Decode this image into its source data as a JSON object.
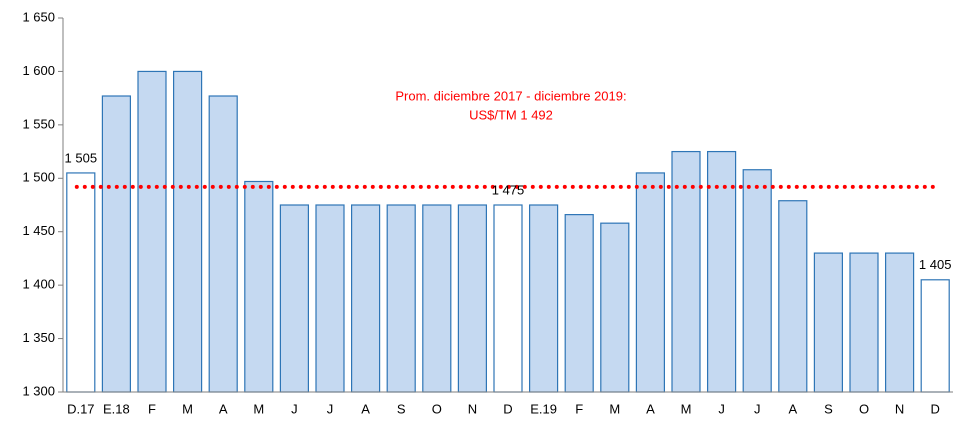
{
  "chart_data": {
    "type": "bar",
    "categories": [
      "D.17",
      "E.18",
      "F",
      "M",
      "A",
      "M",
      "J",
      "J",
      "A",
      "S",
      "O",
      "N",
      "D",
      "E.19",
      "F",
      "M",
      "A",
      "M",
      "J",
      "J",
      "A",
      "S",
      "O",
      "N",
      "D"
    ],
    "values": [
      1505,
      1577,
      1600,
      1600,
      1577,
      1497,
      1475,
      1475,
      1475,
      1475,
      1475,
      1475,
      1475,
      1475,
      1466,
      1458,
      1505,
      1525,
      1525,
      1508,
      1479,
      1430,
      1430,
      1430,
      1405
    ],
    "value_labels": [
      "1 505",
      null,
      null,
      null,
      null,
      null,
      null,
      null,
      null,
      null,
      null,
      null,
      "1 475",
      null,
      null,
      null,
      null,
      null,
      null,
      null,
      null,
      null,
      null,
      null,
      "1 405"
    ],
    "colors": [
      "#ffffff",
      "#c5d9f1",
      "#c5d9f1",
      "#c5d9f1",
      "#c5d9f1",
      "#c5d9f1",
      "#c5d9f1",
      "#c5d9f1",
      "#c5d9f1",
      "#c5d9f1",
      "#c5d9f1",
      "#c5d9f1",
      "#ffffff",
      "#c5d9f1",
      "#c5d9f1",
      "#c5d9f1",
      "#c5d9f1",
      "#c5d9f1",
      "#c5d9f1",
      "#c5d9f1",
      "#c5d9f1",
      "#c5d9f1",
      "#c5d9f1",
      "#c5d9f1",
      "#ffffff"
    ],
    "border_color": "#2e75b6",
    "ylim": [
      1300,
      1650
    ],
    "yticks": [
      {
        "value": 1300,
        "label": "1 300"
      },
      {
        "value": 1350,
        "label": "1 350"
      },
      {
        "value": 1400,
        "label": "1 400"
      },
      {
        "value": 1450,
        "label": "1 450"
      },
      {
        "value": 1500,
        "label": "1 500"
      },
      {
        "value": 1550,
        "label": "1 550"
      },
      {
        "value": 1600,
        "label": "1 600"
      },
      {
        "value": 1650,
        "label": "1 650"
      }
    ],
    "reference_line": {
      "value": 1492,
      "color": "#ff0000",
      "label": [
        "Prom. diciembre 2017 - diciembre 2019:",
        "US$/TM 1 492"
      ]
    }
  }
}
